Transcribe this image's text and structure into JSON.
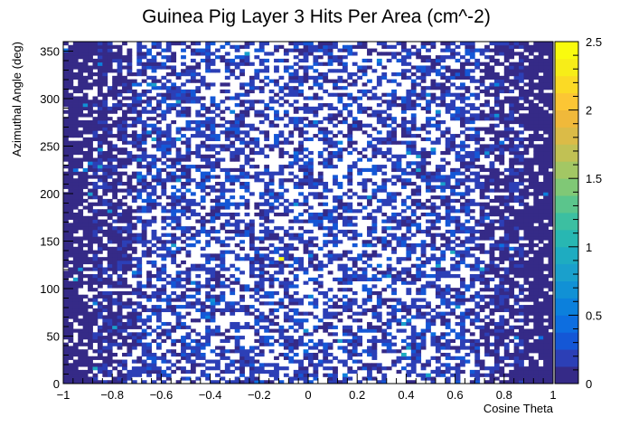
{
  "chart_data": {
    "type": "heatmap",
    "title": "Guinea Pig Layer 3 Hits Per Area (cm^-2)",
    "xlabel": "Cosine Theta",
    "ylabel": "Azimuthal Angle (deg)",
    "xlim": [
      -1,
      1
    ],
    "ylim": [
      0,
      360
    ],
    "x_ticks": [
      -1,
      -0.8,
      -0.6,
      -0.4,
      -0.2,
      0,
      0.2,
      0.4,
      0.6,
      0.8,
      1
    ],
    "x_tick_labels": [
      "−1",
      "−0.8",
      "−0.6",
      "−0.4",
      "−0.2",
      "0",
      "0.2",
      "0.4",
      "0.6",
      "0.8",
      "1"
    ],
    "y_ticks": [
      0,
      50,
      100,
      150,
      200,
      250,
      300,
      350
    ],
    "y_tick_labels": [
      "0",
      "50",
      "100",
      "150",
      "200",
      "250",
      "300",
      "350"
    ],
    "colorbar": {
      "range": [
        0,
        2.5
      ],
      "ticks": [
        0,
        0.5,
        1,
        1.5,
        2,
        2.5
      ],
      "tick_labels": [
        "0",
        "0.5",
        "1",
        "1.5",
        "2",
        "2.5"
      ],
      "palette": [
        "#352a87",
        "#2c3fb6",
        "#1457d6",
        "#0d6ee0",
        "#0c80dc",
        "#1191d5",
        "#1aa0cc",
        "#1eacc1",
        "#28b7b2",
        "#3cbfa1",
        "#5bc58c",
        "#80c876",
        "#a3c764",
        "#c1c154",
        "#dbbb47",
        "#f0b93a",
        "#fcc634",
        "#fbda25",
        "#f7ed18",
        "#f9fb0e"
      ],
      "levels": 20
    },
    "bins": {
      "x": 100,
      "y": 100
    },
    "profile": {
      "edge_value": 0.1,
      "edge_fraction_empty": 0.08,
      "center_fraction_empty": 0.5,
      "typical_nonzero": 0.15,
      "max_value": 2.5
    },
    "hotspots": [
      {
        "x": -0.11,
        "y": 131,
        "value": 2.4
      }
    ]
  }
}
